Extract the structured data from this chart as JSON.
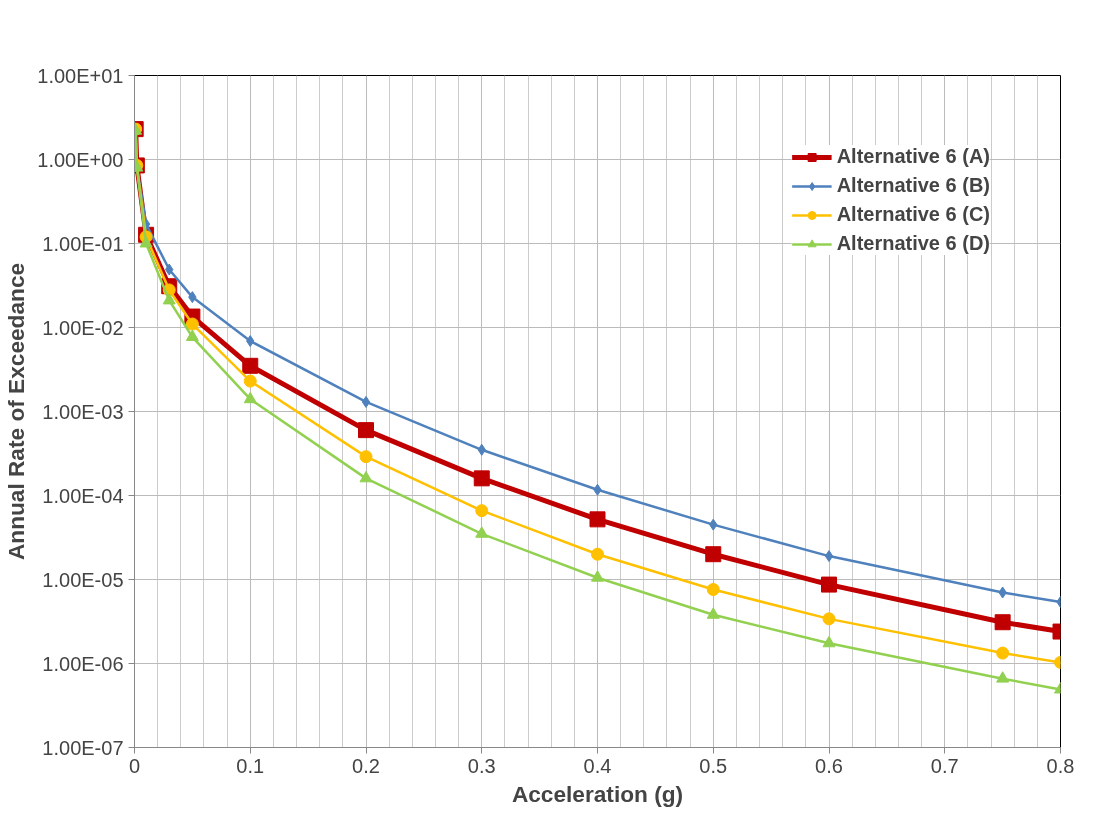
{
  "chart_data": {
    "type": "line",
    "xlabel": "Acceleration (g)",
    "ylabel": "Annual Rate of Exceedance",
    "x": [
      0.001,
      0.002,
      0.01,
      0.03,
      0.05,
      0.1,
      0.2,
      0.3,
      0.4,
      0.5,
      0.6,
      0.75,
      0.8
    ],
    "series": [
      {
        "name": "Alternative 6 (A)",
        "color": "#c00000",
        "marker": "square",
        "values": [
          2.3,
          0.85,
          0.127,
          0.031,
          0.0135,
          0.0035,
          0.0006,
          0.00016,
          5.2e-05,
          2e-05,
          8.7e-06,
          3.1e-06,
          2.4e-06
        ]
      },
      {
        "name": "Alternative 6 (B)",
        "color": "#4f81bd",
        "marker": "diamond",
        "values": [
          2.3,
          0.85,
          0.17,
          0.049,
          0.023,
          0.0069,
          0.0013,
          0.00035,
          0.000117,
          4.5e-05,
          1.9e-05,
          7e-06,
          5.4e-06
        ]
      },
      {
        "name": "Alternative 6 (C)",
        "color": "#ffc000",
        "marker": "circle",
        "values": [
          2.3,
          0.85,
          0.12,
          0.028,
          0.011,
          0.0023,
          0.00029,
          6.6e-05,
          2e-05,
          7.6e-06,
          3.4e-06,
          1.33e-06,
          1.03e-06
        ]
      },
      {
        "name": "Alternative 6 (D)",
        "color": "#92d050",
        "marker": "triangle",
        "values": [
          2.2,
          0.8,
          0.1,
          0.021,
          0.0077,
          0.0014,
          0.00016,
          3.5e-05,
          1.05e-05,
          3.8e-06,
          1.74e-06,
          6.6e-07,
          4.9e-07
        ]
      }
    ],
    "log": "y",
    "xlim": [
      0,
      0.8
    ],
    "ylim": [
      1e-07,
      10
    ],
    "xticks": [
      0,
      0.1,
      0.2,
      0.3,
      0.4,
      0.5,
      0.6,
      0.7,
      0.8
    ],
    "yticks": [
      {
        "value": 1e-07,
        "label": "1.00E-07"
      },
      {
        "value": 1e-06,
        "label": "1.00E-06"
      },
      {
        "value": 1e-05,
        "label": "1.00E-05"
      },
      {
        "value": 0.0001,
        "label": "1.00E-04"
      },
      {
        "value": 0.001,
        "label": "1.00E-03"
      },
      {
        "value": 0.01,
        "label": "1.00E-02"
      },
      {
        "value": 0.1,
        "label": "1.00E-01"
      },
      {
        "value": 1,
        "label": "1.00E+00"
      },
      {
        "value": 10,
        "label": "1.00E+01"
      }
    ],
    "grid": true,
    "legend": "top right",
    "line_style": "solid"
  }
}
